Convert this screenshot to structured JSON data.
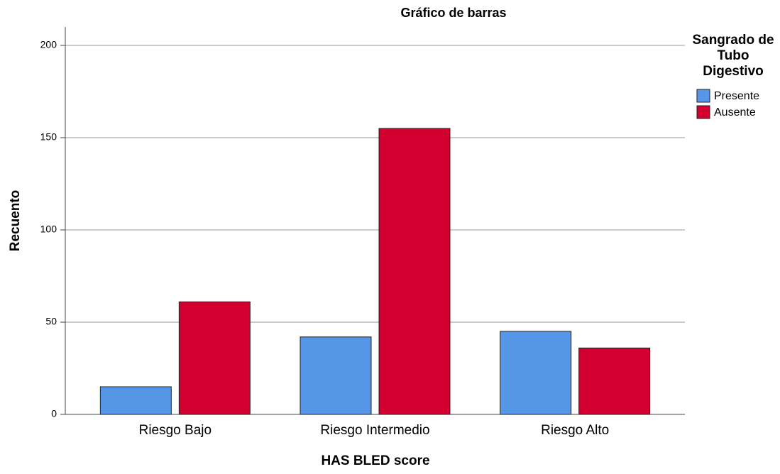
{
  "chart_data": {
    "type": "bar",
    "title": "Gráfico de barras",
    "x_label": "HAS BLED score",
    "y_label": "Recuento",
    "legend_title": "Sangrado de Tubo Digestivo",
    "categories": [
      "Riesgo Bajo",
      "Riesgo Intermedio",
      "Riesgo Alto"
    ],
    "series": [
      {
        "name": "Presente",
        "color": "#5596e6",
        "values": [
          15,
          42,
          45
        ]
      },
      {
        "name": "Ausente",
        "color": "#d3002f",
        "values": [
          61,
          155,
          36
        ]
      }
    ],
    "ylim": [
      0,
      210
    ],
    "yticks": [
      0,
      50,
      100,
      150,
      200
    ],
    "grid": true
  }
}
